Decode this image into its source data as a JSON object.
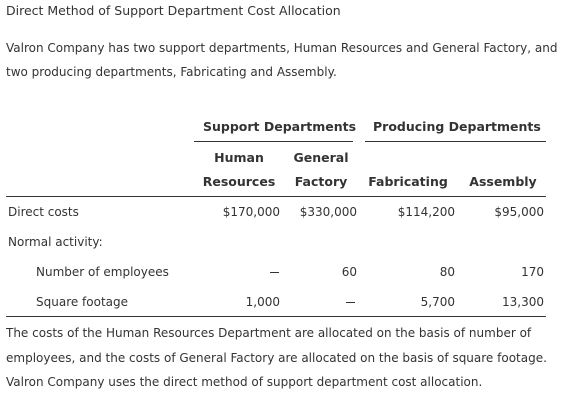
{
  "title": "Direct Method of Support Department Cost Allocation",
  "intro": "Valron Company has two support departments, Human Resources and General Factory, and two producing departments, Fabricating and Assembly.",
  "table": {
    "group_headers": {
      "support": "Support Departments",
      "producing": "Producing Departments"
    },
    "col_headers": {
      "hr_line1": "Human",
      "hr_line2": "Resources",
      "gf_line1": "General",
      "gf_line2": "Factory",
      "fab": "Fabricating",
      "asm": "Assembly"
    },
    "rows": {
      "direct_costs": {
        "label": "Direct costs",
        "hr": "$170,000",
        "gf": "$330,000",
        "fab": "$114,200",
        "asm": "$95,000"
      },
      "normal_activity": {
        "label": "Normal activity:"
      },
      "employees": {
        "label": "Number of employees",
        "hr": "—",
        "gf": "60",
        "fab": "80",
        "asm": "170"
      },
      "square_footage": {
        "label": "Square footage",
        "hr": "1,000",
        "gf": "—",
        "fab": "5,700",
        "asm": "13,300"
      }
    }
  },
  "footer": "The costs of the Human Resources Department are allocated on the basis of number of employees, and the costs of General Factory are allocated on the basis of square footage. Valron Company uses the direct method of support department cost allocation."
}
